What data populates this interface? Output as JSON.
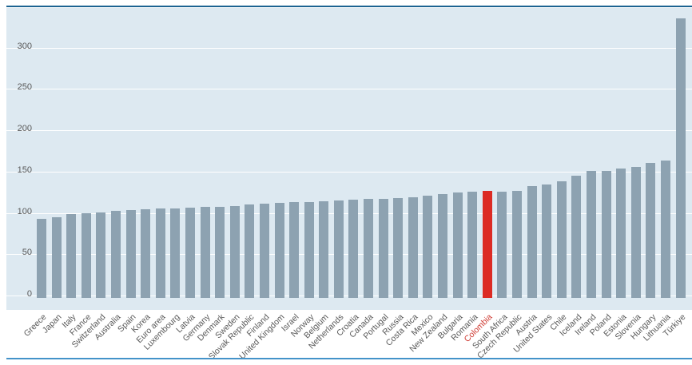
{
  "chart_data": {
    "type": "bar",
    "title": "",
    "xlabel": "",
    "ylabel": "",
    "categories": [
      "Greece",
      "Japan",
      "Italy",
      "France",
      "Switzerland",
      "Australia",
      "Spain",
      "Korea",
      "Euro area",
      "Luxembourg",
      "Latvia",
      "Germany",
      "Denmark",
      "Sweden",
      "Slovak Republic",
      "Finland",
      "United Kingdom",
      "Israel",
      "Norway",
      "Belgium",
      "Netherlands",
      "Croatia",
      "Canada",
      "Portugal",
      "Russia",
      "Costa Rica",
      "Mexico",
      "New Zealand",
      "Bulgaria",
      "Romania",
      "Colombia",
      "South Africa",
      "Czech Republic",
      "Austria",
      "United States",
      "Chile",
      "Iceland",
      "Ireland",
      "Poland",
      "Estonia",
      "Slovenia",
      "Hungary",
      "Lithuania",
      "Türkiye"
    ],
    "values": [
      93,
      95,
      99,
      100,
      101,
      102,
      103,
      104,
      105,
      105,
      106,
      107,
      107,
      108,
      110,
      111,
      112,
      113,
      113,
      114,
      115,
      116,
      117,
      117,
      118,
      119,
      121,
      123,
      125,
      126,
      127,
      126,
      127,
      132,
      134,
      138,
      145,
      151,
      151,
      154,
      156,
      160,
      163,
      335
    ],
    "highlight_category": "Colombia",
    "yticks": [
      0,
      50,
      100,
      150,
      200,
      250,
      300
    ],
    "ylim": [
      0,
      348
    ],
    "grid": "horizontal-white",
    "legend": "none",
    "colors": {
      "bar": "#8da2b1",
      "highlight_bar": "#dc2b24",
      "plot_background": "#dde9f1",
      "gridline": "#ffffff",
      "tick_text": "#595959",
      "highlight_label": "#cf3a32",
      "top_border": "#1c6391",
      "bottom_border": "#4493c9"
    }
  }
}
